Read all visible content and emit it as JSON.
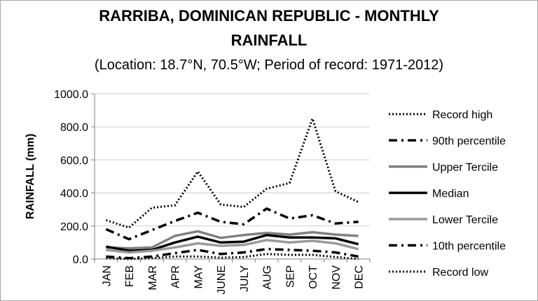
{
  "chart_data": {
    "type": "line",
    "title_line1": "RARRIBA, DOMINICAN REPUBLIC - MONTHLY",
    "title_line2": "RAINFALL",
    "subtitle": "(Location: 18.7°N, 70.5°W; Period of record: 1971-2012)",
    "xlabel": "",
    "ylabel": "RAINFALL (mm)",
    "ylim": [
      0,
      1000
    ],
    "yticks": [
      "1000.0",
      "800.0",
      "600.0",
      "400.0",
      "200.0",
      "0.0"
    ],
    "ytick_values": [
      1000,
      800,
      600,
      400,
      200,
      0
    ],
    "categories": [
      "JAN",
      "FEB",
      "MAR",
      "APR",
      "MAY",
      "JUNE",
      "JULY",
      "AUG",
      "SEP",
      "OCT",
      "NOV",
      "DEC"
    ],
    "grid": "horizontal",
    "legend_position": "right",
    "series": [
      {
        "name": "Record high",
        "color": "#000000",
        "style": "dotted",
        "values": [
          235,
          190,
          310,
          325,
          530,
          330,
          315,
          425,
          460,
          850,
          410,
          345
        ]
      },
      {
        "name": "90th percentile",
        "color": "#000000",
        "style": "dashdot",
        "values": [
          180,
          120,
          175,
          230,
          280,
          225,
          210,
          305,
          245,
          265,
          215,
          225
        ]
      },
      {
        "name": "Upper Tercile",
        "color": "#808080",
        "style": "solid",
        "values": [
          70,
          65,
          70,
          140,
          168,
          128,
          145,
          158,
          148,
          162,
          148,
          140
        ]
      },
      {
        "name": "Median",
        "color": "#000000",
        "style": "solid",
        "values": [
          75,
          50,
          55,
          100,
          135,
          100,
          105,
          145,
          130,
          130,
          125,
          90
        ]
      },
      {
        "name": "Lower Tercile",
        "color": "#9a9a9a",
        "style": "solid",
        "values": [
          55,
          40,
          50,
          70,
          95,
          80,
          85,
          115,
          100,
          110,
          95,
          60
        ]
      },
      {
        "name": "10th percentile",
        "color": "#000000",
        "style": "dashdot",
        "values": [
          15,
          5,
          15,
          35,
          55,
          30,
          40,
          60,
          55,
          50,
          40,
          15
        ]
      },
      {
        "name": "Record low",
        "color": "#000000",
        "style": "dotted",
        "values": [
          5,
          0,
          5,
          15,
          15,
          8,
          12,
          30,
          25,
          25,
          12,
          0
        ]
      }
    ]
  }
}
